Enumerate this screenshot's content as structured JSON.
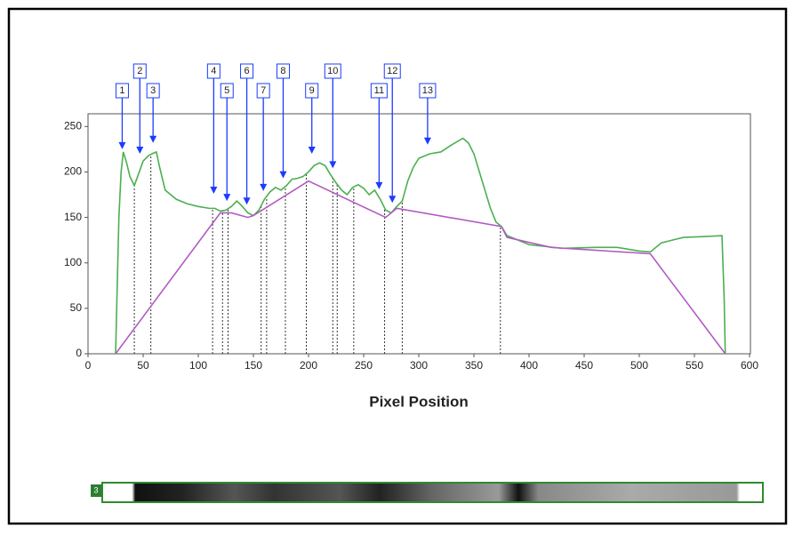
{
  "chart_data": {
    "type": "line",
    "xlabel": "Pixel Position",
    "xlim": [
      0,
      600
    ],
    "xticks": [
      0,
      50,
      100,
      150,
      200,
      250,
      300,
      350,
      400,
      450,
      500,
      550,
      600
    ],
    "ylim": [
      0,
      264
    ],
    "yticks": [
      0,
      50,
      100,
      150,
      200,
      250
    ],
    "series": [
      {
        "color": "#4caf50",
        "x": [
          25,
          27,
          28,
          30,
          32,
          35,
          38,
          42,
          45,
          50,
          55,
          58,
          62,
          65,
          70,
          80,
          90,
          100,
          110,
          115,
          120,
          125,
          130,
          135,
          140,
          145,
          150,
          155,
          160,
          165,
          170,
          175,
          180,
          185,
          190,
          195,
          200,
          205,
          210,
          215,
          220,
          225,
          230,
          235,
          240,
          245,
          250,
          255,
          260,
          265,
          270,
          275,
          280,
          285,
          290,
          295,
          300,
          310,
          320,
          330,
          340,
          345,
          350,
          355,
          360,
          365,
          370,
          375,
          380,
          400,
          430,
          460,
          480,
          500,
          510,
          520,
          530,
          540,
          560,
          575,
          577,
          578
        ],
        "values": [
          0,
          100,
          150,
          200,
          222,
          210,
          195,
          185,
          195,
          212,
          218,
          220,
          222,
          205,
          180,
          170,
          165,
          162,
          160,
          160,
          157,
          158,
          162,
          168,
          162,
          155,
          152,
          158,
          170,
          178,
          183,
          180,
          185,
          192,
          193,
          195,
          200,
          207,
          210,
          207,
          197,
          188,
          180,
          175,
          183,
          186,
          182,
          175,
          180,
          170,
          158,
          155,
          162,
          168,
          190,
          205,
          215,
          220,
          222,
          230,
          237,
          232,
          220,
          200,
          180,
          160,
          145,
          140,
          130,
          120,
          116,
          117,
          117,
          113,
          112,
          122,
          125,
          128,
          129,
          130,
          60,
          0
        ]
      },
      {
        "color": "#b05cc0",
        "x": [
          25,
          120,
          130,
          145,
          150,
          200,
          270,
          280,
          375,
          380,
          420,
          510,
          578
        ],
        "values": [
          0,
          155,
          155,
          150,
          152,
          190,
          150,
          160,
          140,
          128,
          117,
          110,
          0
        ]
      }
    ],
    "markers": [
      42,
      57,
      113,
      122,
      127,
      157,
      162,
      179,
      198,
      222,
      226,
      241,
      269,
      285,
      374
    ],
    "annotations": [
      {
        "label": "1",
        "x": 31,
        "y": 225
      },
      {
        "label": "2",
        "x": 47,
        "y": 220
      },
      {
        "label": "3",
        "x": 59,
        "y": 232
      },
      {
        "label": "4",
        "x": 114,
        "y": 176
      },
      {
        "label": "5",
        "x": 126,
        "y": 168
      },
      {
        "label": "6",
        "x": 144,
        "y": 164
      },
      {
        "label": "7",
        "x": 159,
        "y": 179
      },
      {
        "label": "8",
        "x": 177,
        "y": 193
      },
      {
        "label": "9",
        "x": 203,
        "y": 220
      },
      {
        "label": "10",
        "x": 222,
        "y": 204
      },
      {
        "label": "11",
        "x": 264,
        "y": 181
      },
      {
        "label": "12",
        "x": 276,
        "y": 166
      },
      {
        "label": "13",
        "x": 308,
        "y": 230
      }
    ],
    "lane_label": "3"
  }
}
